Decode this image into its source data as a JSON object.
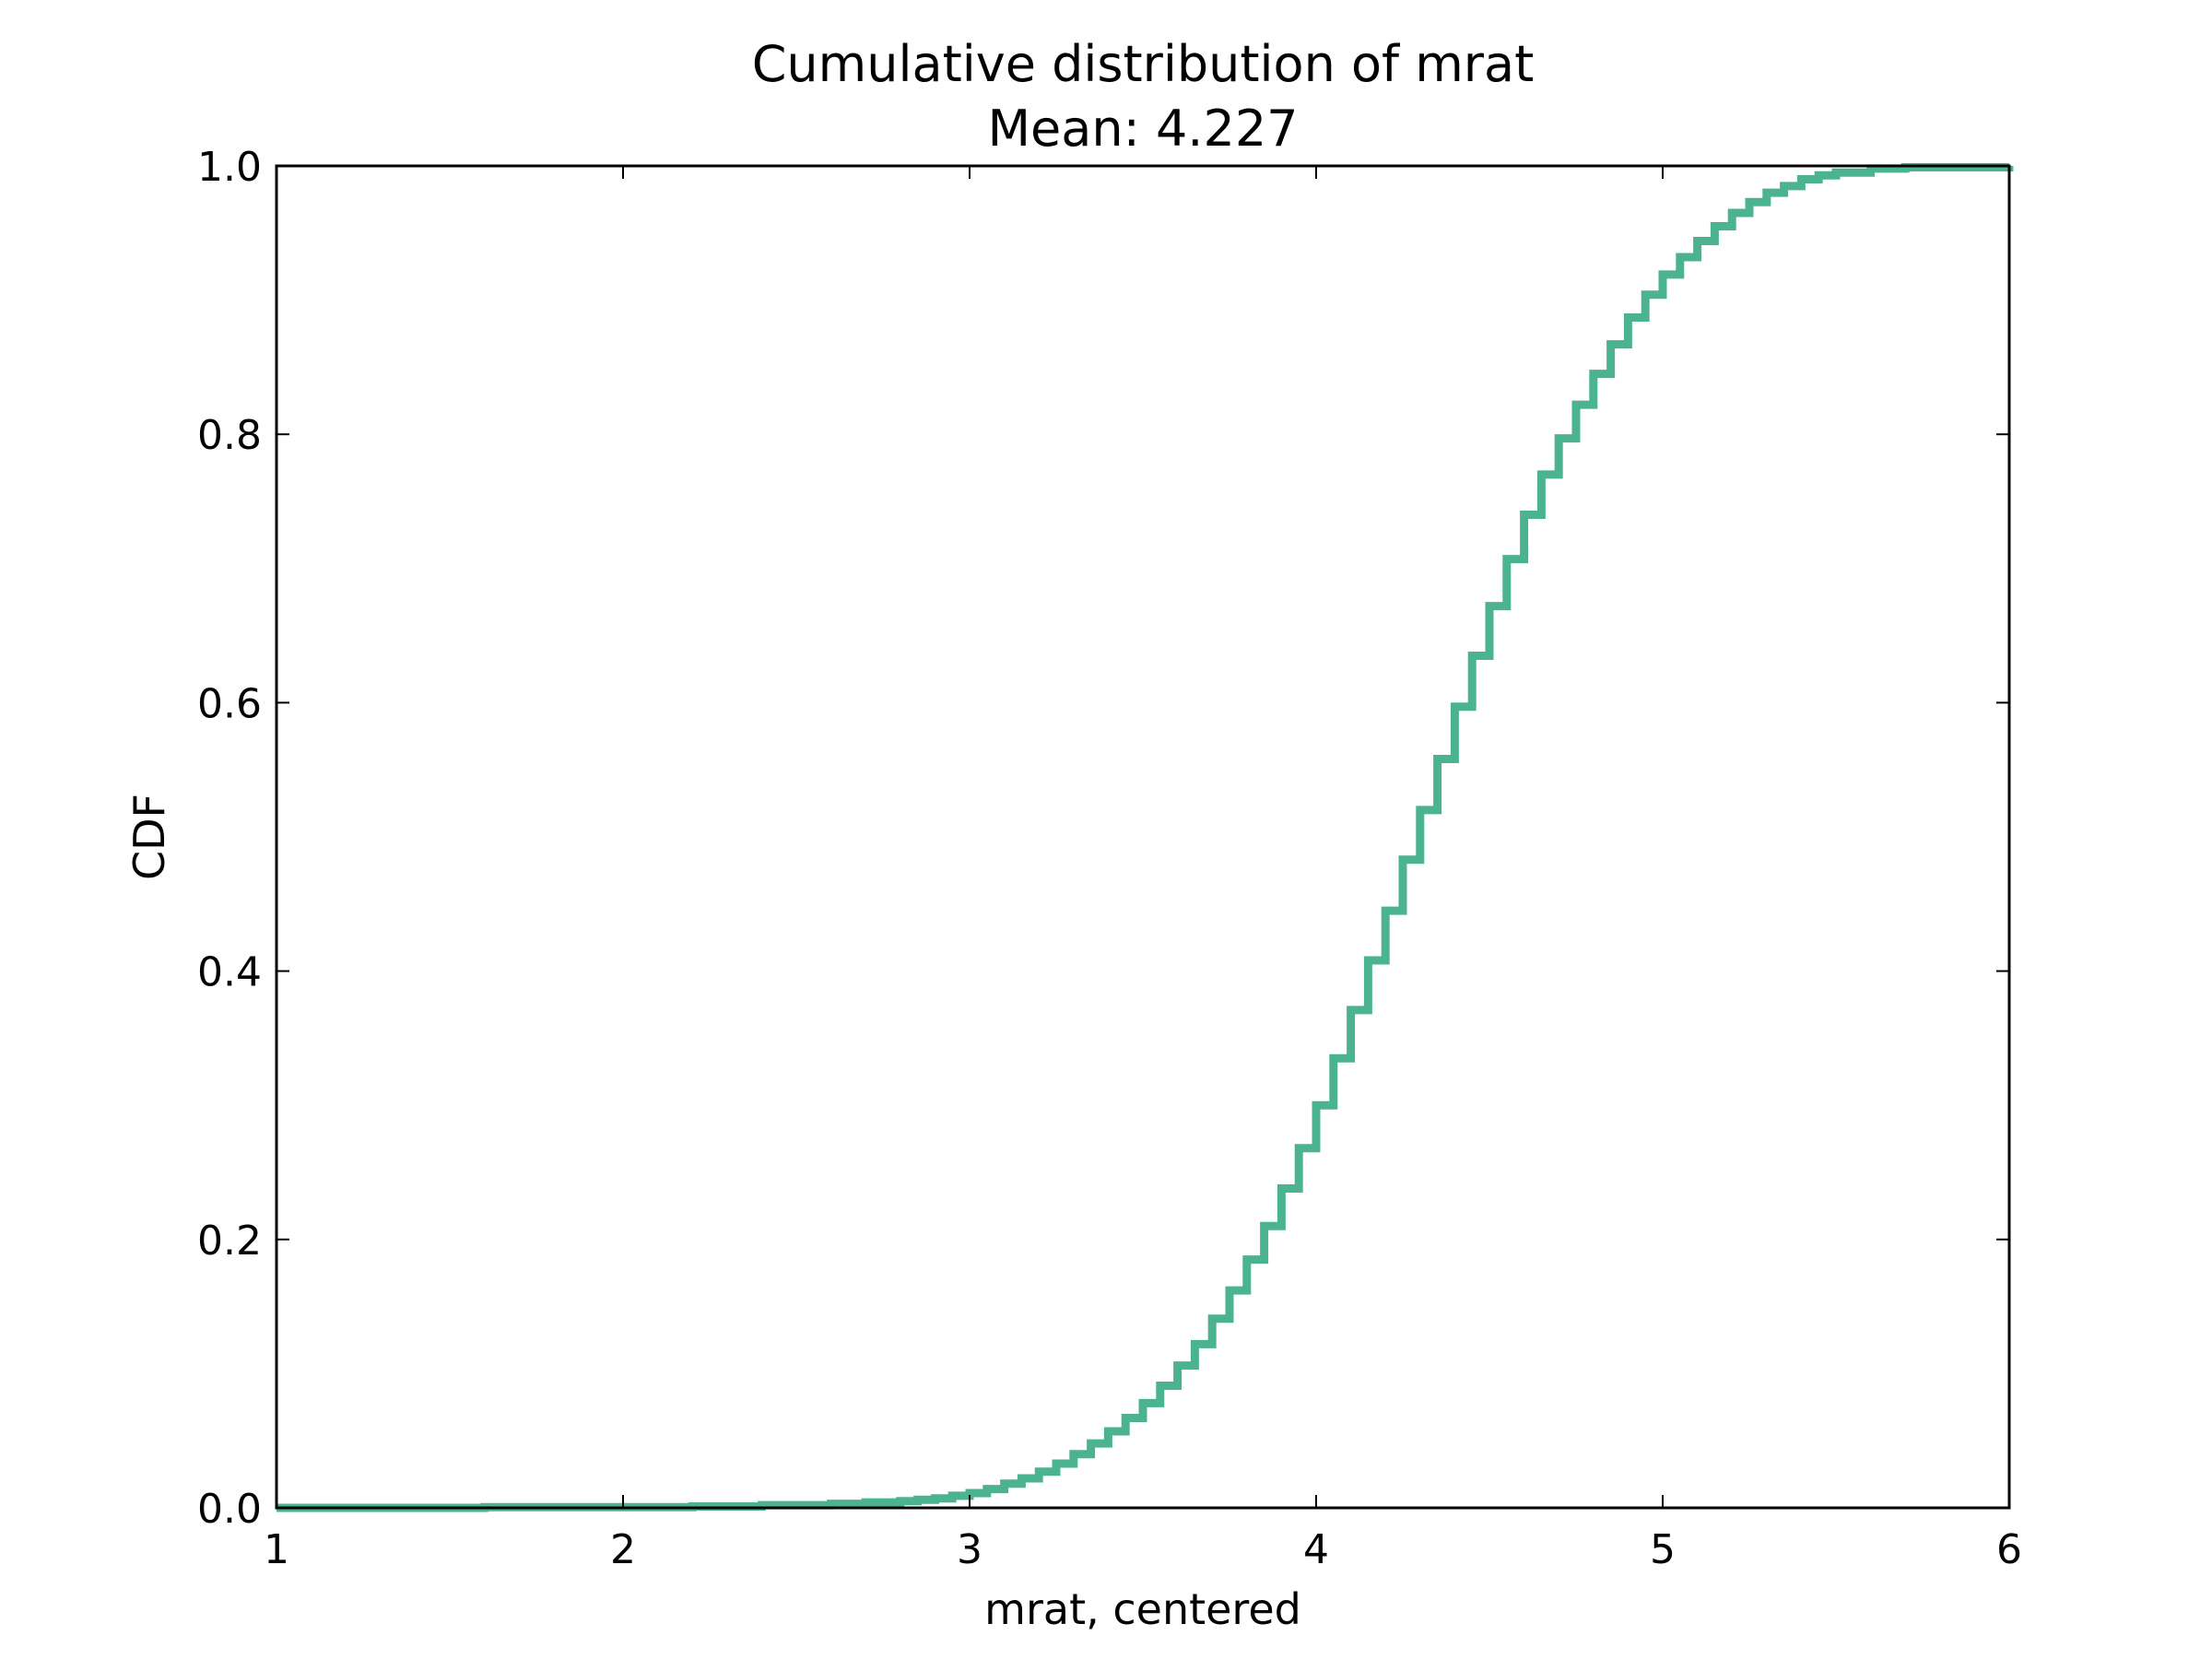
{
  "chart_data": {
    "type": "line",
    "drawstyle": "steps",
    "title": "Cumulative distribution of mrat",
    "subtitle": "Mean: 4.227",
    "xlabel": "mrat, centered",
    "ylabel": "CDF",
    "xlim": [
      1,
      6
    ],
    "ylim": [
      0,
      1
    ],
    "xticks": [
      1,
      2,
      3,
      4,
      5,
      6
    ],
    "xtick_labels": [
      "1",
      "2",
      "3",
      "4",
      "5",
      "6"
    ],
    "yticks": [
      0,
      0.2,
      0.4,
      0.6,
      0.8,
      1.0
    ],
    "ytick_labels": [
      "0.0",
      "0.2",
      "0.4",
      "0.6",
      "0.8",
      "1.0"
    ],
    "grid": false,
    "line_color": "#4cb391",
    "series": [
      {
        "x": [
          1.0,
          1.6,
          2.2,
          2.4,
          2.6,
          2.7,
          2.8,
          2.85,
          2.9,
          2.95,
          3.0,
          3.05,
          3.1,
          3.15,
          3.2,
          3.25,
          3.3,
          3.35,
          3.4,
          3.45,
          3.5,
          3.55,
          3.6,
          3.65,
          3.7,
          3.75,
          3.8,
          3.85,
          3.9,
          3.95,
          4.0,
          4.05,
          4.1,
          4.15,
          4.2,
          4.25,
          4.3,
          4.35,
          4.4,
          4.45,
          4.5,
          4.55,
          4.6,
          4.65,
          4.7,
          4.75,
          4.8,
          4.85,
          4.9,
          4.95,
          5.0,
          5.05,
          5.1,
          5.15,
          5.2,
          5.25,
          5.3,
          5.35,
          5.4,
          5.45,
          5.5,
          5.6,
          5.7,
          6.0
        ],
        "y": [
          0.0,
          0.0005,
          0.001,
          0.002,
          0.003,
          0.004,
          0.005,
          0.006,
          0.007,
          0.009,
          0.011,
          0.014,
          0.018,
          0.022,
          0.027,
          0.033,
          0.04,
          0.048,
          0.057,
          0.067,
          0.078,
          0.091,
          0.106,
          0.122,
          0.141,
          0.162,
          0.185,
          0.21,
          0.238,
          0.268,
          0.3,
          0.335,
          0.371,
          0.408,
          0.445,
          0.483,
          0.52,
          0.558,
          0.597,
          0.635,
          0.672,
          0.707,
          0.74,
          0.77,
          0.797,
          0.822,
          0.845,
          0.867,
          0.887,
          0.904,
          0.919,
          0.932,
          0.944,
          0.955,
          0.965,
          0.973,
          0.98,
          0.985,
          0.99,
          0.993,
          0.995,
          0.998,
          0.999,
          1.0
        ]
      }
    ]
  }
}
